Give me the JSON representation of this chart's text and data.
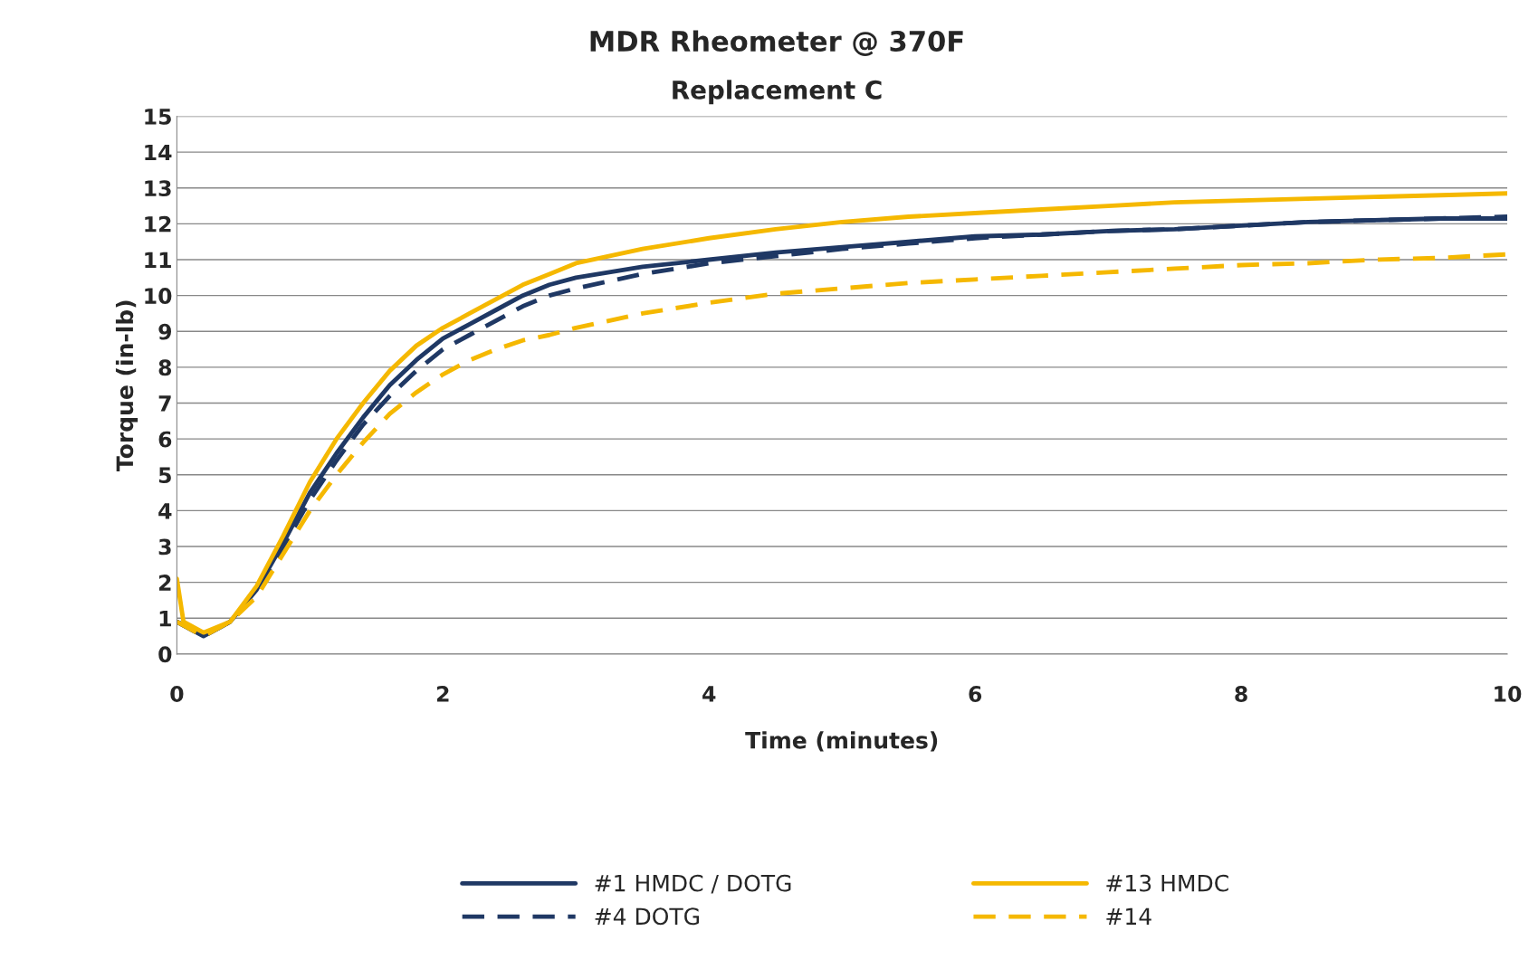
{
  "chart_data": {
    "type": "line",
    "title": "MDR Rheometer @ 370F",
    "subtitle": "Replacement C",
    "xlabel": "Time (minutes)",
    "ylabel": "Torque (in-lb)",
    "xlim": [
      0,
      10
    ],
    "xticks": [
      0,
      2,
      4,
      6,
      8,
      10
    ],
    "ylim": [
      0,
      15
    ],
    "yticks": [
      0,
      1,
      2,
      3,
      4,
      5,
      6,
      7,
      8,
      9,
      10,
      11,
      12,
      13,
      14,
      15
    ],
    "grid": "y",
    "legend": "bottom",
    "marker": "none",
    "series": [
      {
        "name": "#1 HMDC / DOTG",
        "color": "#1f3864",
        "line_style": "solid",
        "x": [
          0,
          0.2,
          0.4,
          0.6,
          0.8,
          1.0,
          1.2,
          1.4,
          1.6,
          1.8,
          2.0,
          2.2,
          2.4,
          2.6,
          2.8,
          3.0,
          3.5,
          4.0,
          4.5,
          5,
          5.5,
          6,
          6.5,
          7,
          7.5,
          8,
          8.5,
          9,
          9.5,
          10
        ],
        "values": [
          0.9,
          0.5,
          0.9,
          1.8,
          3.1,
          4.5,
          5.6,
          6.6,
          7.5,
          8.2,
          8.8,
          9.2,
          9.6,
          10.0,
          10.3,
          10.5,
          10.8,
          11.0,
          11.2,
          11.35,
          11.5,
          11.65,
          11.7,
          11.8,
          11.85,
          11.95,
          12.05,
          12.1,
          12.15,
          12.15
        ]
      },
      {
        "name": "#4 DOTG",
        "color": "#1f3864",
        "line_style": "dashed",
        "x": [
          0,
          0.2,
          0.4,
          0.6,
          0.8,
          1.0,
          1.2,
          1.4,
          1.6,
          1.8,
          2.0,
          2.2,
          2.4,
          2.6,
          2.8,
          3.0,
          3.5,
          4.0,
          4.5,
          5,
          5.5,
          6,
          6.5,
          7,
          7.5,
          8,
          8.5,
          9,
          9.5,
          10
        ],
        "values": [
          0.9,
          0.5,
          0.9,
          1.7,
          3.0,
          4.3,
          5.4,
          6.4,
          7.2,
          7.9,
          8.5,
          8.9,
          9.3,
          9.7,
          10.0,
          10.2,
          10.6,
          10.9,
          11.1,
          11.3,
          11.45,
          11.6,
          11.7,
          11.8,
          11.85,
          11.95,
          12.05,
          12.1,
          12.15,
          12.2
        ]
      },
      {
        "name": "#13 HMDC",
        "color": "#f5b800",
        "line_style": "solid",
        "x": [
          0,
          0.05,
          0.2,
          0.4,
          0.6,
          0.8,
          1.0,
          1.2,
          1.4,
          1.6,
          1.8,
          2.0,
          2.2,
          2.4,
          2.6,
          2.8,
          3.0,
          3.5,
          4.0,
          4.5,
          5,
          5.5,
          6,
          6.5,
          7,
          7.5,
          8,
          8.5,
          9,
          9.5,
          10
        ],
        "values": [
          2.1,
          0.9,
          0.6,
          0.9,
          1.9,
          3.3,
          4.8,
          6.0,
          7.0,
          7.9,
          8.6,
          9.1,
          9.5,
          9.9,
          10.3,
          10.6,
          10.9,
          11.3,
          11.6,
          11.85,
          12.05,
          12.2,
          12.3,
          12.4,
          12.5,
          12.6,
          12.65,
          12.7,
          12.75,
          12.8,
          12.85
        ]
      },
      {
        "name": "#14",
        "color": "#f5b800",
        "line_style": "dashed",
        "x": [
          0,
          0.2,
          0.4,
          0.6,
          0.8,
          1.0,
          1.2,
          1.4,
          1.6,
          1.8,
          2.0,
          2.2,
          2.4,
          2.6,
          2.8,
          3.0,
          3.5,
          4.0,
          4.5,
          5,
          5.5,
          6,
          6.5,
          7,
          7.5,
          8,
          8.5,
          9,
          9.5,
          10
        ],
        "values": [
          0.9,
          0.5,
          0.9,
          1.6,
          2.8,
          4.0,
          5.0,
          5.9,
          6.7,
          7.3,
          7.8,
          8.2,
          8.5,
          8.75,
          8.9,
          9.1,
          9.5,
          9.8,
          10.05,
          10.2,
          10.35,
          10.45,
          10.55,
          10.65,
          10.75,
          10.85,
          10.9,
          11.0,
          11.05,
          11.15
        ]
      }
    ]
  }
}
